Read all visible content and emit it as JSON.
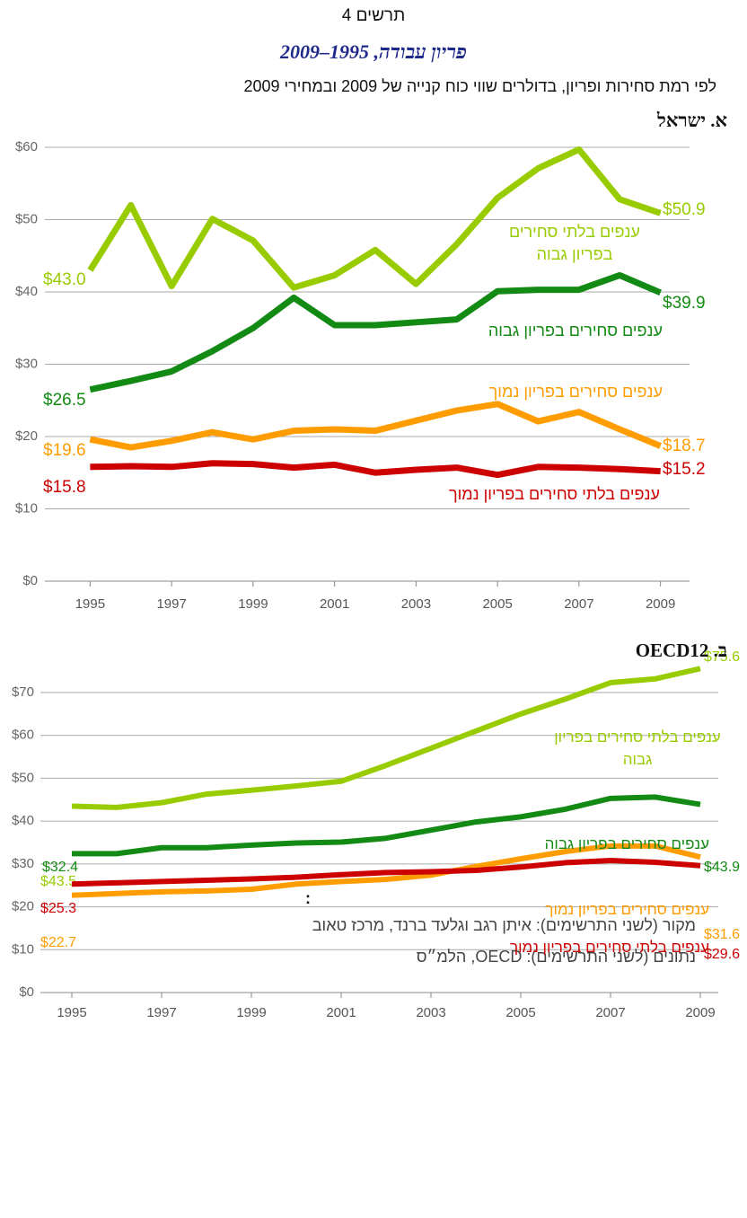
{
  "header": {
    "figure_label": "תרשים 4",
    "title": "פריון עבודה, 1995–2009",
    "subtitle": "לפי רמת סחירות ופריון, בדולרים שווי כוח קנייה של 2009 ובמחירי 2009"
  },
  "chart_data": [
    {
      "type": "line",
      "title": "א. ישראל",
      "x": [
        1995,
        1996,
        1997,
        1998,
        1999,
        2000,
        2001,
        2002,
        2003,
        2004,
        2005,
        2006,
        2007,
        2008,
        2009
      ],
      "xlim": [
        1994,
        2010
      ],
      "xticks": [
        1995,
        1997,
        1999,
        2001,
        2003,
        2005,
        2007,
        2009
      ],
      "ylim": [
        0,
        60
      ],
      "yticks": [
        {
          "value": 0,
          "label": "$0"
        },
        {
          "value": 10,
          "label": "$10"
        },
        {
          "value": 20,
          "label": "$20"
        },
        {
          "value": 30,
          "label": "$30"
        },
        {
          "value": 40,
          "label": "$40"
        },
        {
          "value": 50,
          "label": "$50"
        },
        {
          "value": 60,
          "label": "$60"
        }
      ],
      "grid": true,
      "series": [
        {
          "name": "ענפים בלתי סחירים בפריון גבוה",
          "color": "#99cc00",
          "values": [
            43.0,
            52.0,
            40.8,
            50.1,
            47.1,
            40.6,
            42.3,
            45.8,
            41.1,
            46.6,
            53.0,
            57.1,
            59.7,
            52.8,
            50.9
          ],
          "value_labels": [
            "$43.0",
            null,
            null,
            null,
            null,
            null,
            null,
            null,
            null,
            null,
            null,
            null,
            null,
            null,
            "$50.9"
          ]
        },
        {
          "name": "ענפים סחירים בפריון גבוה",
          "color": "#138a13",
          "values": [
            26.5,
            27.7,
            29.0,
            31.8,
            35.0,
            39.2,
            35.4,
            35.4,
            35.8,
            36.2,
            40.1,
            40.3,
            40.3,
            42.3,
            39.9
          ],
          "value_labels": [
            "$26.5",
            null,
            null,
            null,
            null,
            null,
            null,
            null,
            null,
            null,
            null,
            null,
            null,
            null,
            "$39.9"
          ]
        },
        {
          "name": "ענפים סחירים בפריון נמוך",
          "color": "#ff9c00",
          "values": [
            19.6,
            18.5,
            19.4,
            20.6,
            19.6,
            20.8,
            21.0,
            20.8,
            22.2,
            23.6,
            24.5,
            22.1,
            23.4,
            21.0,
            18.7
          ],
          "value_labels": [
            "$19.6",
            null,
            null,
            null,
            null,
            null,
            null,
            null,
            null,
            null,
            null,
            null,
            null,
            null,
            "$18.7"
          ]
        },
        {
          "name": "ענפים בלתי סחירים בפריון נמוך",
          "color": "#cc0000",
          "values": [
            15.8,
            15.9,
            15.8,
            16.3,
            16.2,
            15.7,
            16.1,
            15.0,
            15.4,
            15.7,
            14.7,
            15.8,
            15.7,
            15.5,
            15.2
          ],
          "value_labels": [
            "$15.8",
            null,
            null,
            null,
            null,
            null,
            null,
            null,
            null,
            null,
            null,
            null,
            null,
            null,
            "$15.2"
          ]
        }
      ]
    },
    {
      "type": "line",
      "title": "ב. OECD12",
      "x": [
        1995,
        1996,
        1997,
        1998,
        1999,
        2000,
        2001,
        2002,
        2003,
        2004,
        2005,
        2006,
        2007,
        2008,
        2009
      ],
      "xlim": [
        1994,
        2010
      ],
      "xticks": [
        1995,
        1997,
        1999,
        2001,
        2003,
        2005,
        2007,
        2009
      ],
      "ylim": [
        0,
        70
      ],
      "yticks": [
        {
          "value": 0,
          "label": "$0"
        },
        {
          "value": 10,
          "label": "$10"
        },
        {
          "value": 20,
          "label": "$20"
        },
        {
          "value": 30,
          "label": "$30"
        },
        {
          "value": 40,
          "label": "$40"
        },
        {
          "value": 50,
          "label": "$50"
        },
        {
          "value": 60,
          "label": "$60"
        },
        {
          "value": 70,
          "label": "$70"
        }
      ],
      "grid": true,
      "series": [
        {
          "name": "ענפים בלתי סחירים בפריון גבוה",
          "color": "#99cc00",
          "values": [
            43.5,
            43.2,
            44.3,
            46.3,
            47.2,
            48.2,
            49.3,
            53.0,
            57.0,
            61.0,
            65.0,
            68.5,
            72.3,
            73.2,
            75.6
          ],
          "value_labels": [
            "$43.5",
            null,
            null,
            null,
            null,
            null,
            null,
            null,
            null,
            null,
            null,
            null,
            null,
            null,
            "$75.6"
          ]
        },
        {
          "name": "ענפים סחירים בפריון גבוה",
          "color": "#138a13",
          "values": [
            32.4,
            32.4,
            33.8,
            33.8,
            34.4,
            34.9,
            35.1,
            36.0,
            37.9,
            39.8,
            41.0,
            42.8,
            45.3,
            45.6,
            43.9
          ],
          "value_labels": [
            "$32.4",
            null,
            null,
            null,
            null,
            null,
            null,
            null,
            null,
            null,
            null,
            null,
            null,
            null,
            "$43.9"
          ]
        },
        {
          "name": "ענפים סחירים בפריון נמוך",
          "color": "#ff9c00",
          "values": [
            22.7,
            23.1,
            23.5,
            23.7,
            24.1,
            25.3,
            25.9,
            26.4,
            27.4,
            29.4,
            31.2,
            32.9,
            34.2,
            34.2,
            31.6
          ],
          "value_labels": [
            "$22.7",
            null,
            null,
            null,
            null,
            null,
            null,
            null,
            null,
            null,
            null,
            null,
            null,
            null,
            "$31.6"
          ]
        },
        {
          "name": "ענפים בלתי סחירים בפריון נמוך",
          "color": "#cc0000",
          "values": [
            25.3,
            25.6,
            25.9,
            26.2,
            26.5,
            26.9,
            27.5,
            28.0,
            28.2,
            28.5,
            29.3,
            30.3,
            30.8,
            30.4,
            29.6
          ],
          "value_labels": [
            "$25.3",
            null,
            null,
            null,
            null,
            null,
            null,
            null,
            null,
            null,
            null,
            null,
            null,
            null,
            "$29.6"
          ]
        }
      ]
    }
  ],
  "footer": {
    "mark": ":",
    "source": "מקור (לשני התרשימים): איתן רגב וגלעד ברנד, מרכז טאוב",
    "data": "נתונים (לשני התרשימים): OECD, הלמ״ס"
  }
}
